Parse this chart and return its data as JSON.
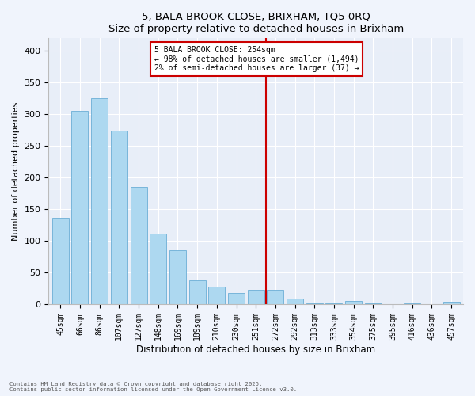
{
  "title": "5, BALA BROOK CLOSE, BRIXHAM, TQ5 0RQ",
  "subtitle": "Size of property relative to detached houses in Brixham",
  "xlabel": "Distribution of detached houses by size in Brixham",
  "ylabel": "Number of detached properties",
  "bar_labels": [
    "45sqm",
    "66sqm",
    "86sqm",
    "107sqm",
    "127sqm",
    "148sqm",
    "169sqm",
    "189sqm",
    "210sqm",
    "230sqm",
    "251sqm",
    "272sqm",
    "292sqm",
    "313sqm",
    "333sqm",
    "354sqm",
    "375sqm",
    "395sqm",
    "416sqm",
    "436sqm",
    "457sqm"
  ],
  "bar_values": [
    136,
    305,
    325,
    274,
    185,
    111,
    85,
    38,
    28,
    18,
    22,
    23,
    9,
    1,
    1,
    5,
    1,
    0,
    1,
    0,
    4
  ],
  "bar_color": "#add8f0",
  "bar_edge_color": "#6baed6",
  "vline_color": "#cc0000",
  "vline_x_index": 10,
  "annotation_title": "5 BALA BROOK CLOSE: 254sqm",
  "annotation_line1": "← 98% of detached houses are smaller (1,494)",
  "annotation_line2": "2% of semi-detached houses are larger (37) →",
  "annotation_box_edge_color": "#cc0000",
  "ylim": [
    0,
    420
  ],
  "yticks": [
    0,
    50,
    100,
    150,
    200,
    250,
    300,
    350,
    400
  ],
  "footnote1": "Contains HM Land Registry data © Crown copyright and database right 2025.",
  "footnote2": "Contains public sector information licensed under the Open Government Licence v3.0.",
  "bg_color": "#f0f4fc",
  "plot_bg_color": "#e8eef8"
}
